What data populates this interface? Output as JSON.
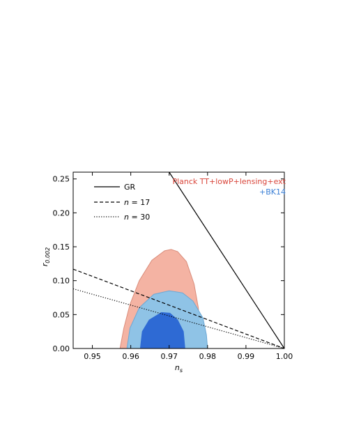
{
  "chart_data": {
    "type": "contour",
    "xlabel": "n",
    "xlabel_sub": "s",
    "ylabel": "r",
    "ylabel_sub": "0.002",
    "xlim": [
      0.945,
      1.0
    ],
    "ylim": [
      0.0,
      0.26
    ],
    "x_ticks": [
      0.95,
      0.96,
      0.97,
      0.98,
      0.99,
      1.0
    ],
    "x_tick_labels": [
      "0.95",
      "0.96",
      "0.97",
      "0.98",
      "0.99",
      "1.00"
    ],
    "y_ticks": [
      0.0,
      0.05,
      0.1,
      0.15,
      0.2,
      0.25
    ],
    "y_tick_labels": [
      "0.00",
      "0.05",
      "0.10",
      "0.15",
      "0.20",
      "0.25"
    ],
    "legend": {
      "placement": "top-left",
      "entries": [
        {
          "label": "GR",
          "style": "solid"
        },
        {
          "label_prefix": "n",
          "label_suffix": " = 17",
          "style": "dashed"
        },
        {
          "label_prefix": "n",
          "label_suffix": " = 30",
          "style": "dotted"
        }
      ]
    },
    "annotations": [
      {
        "text": "Planck TT+lowP+lensing+ext",
        "color": "#d9453a",
        "placement": "top-right"
      },
      {
        "text": "+BK14",
        "color": "#3a7fd5",
        "placement": "top-right"
      }
    ],
    "lines": [
      {
        "name": "GR",
        "style": "solid",
        "color": "#000000",
        "points": [
          [
            0.97,
            0.26
          ],
          [
            1.0,
            0.0
          ]
        ]
      },
      {
        "name": "n = 17",
        "style": "dashed",
        "color": "#000000",
        "points": [
          [
            0.945,
            0.117
          ],
          [
            1.0,
            0.0
          ]
        ]
      },
      {
        "name": "n = 30",
        "style": "dotted",
        "color": "#000000",
        "points": [
          [
            0.945,
            0.088
          ],
          [
            1.0,
            0.0
          ]
        ]
      }
    ],
    "contours": [
      {
        "dataset": "Planck TT+lowP+lensing+ext",
        "level": "95%",
        "fill": "#f4b3a3",
        "stroke": "#d98c7a",
        "points": [
          [
            0.9572,
            0.0
          ],
          [
            0.9582,
            0.03
          ],
          [
            0.9598,
            0.065
          ],
          [
            0.9622,
            0.1
          ],
          [
            0.9655,
            0.13
          ],
          [
            0.9688,
            0.144
          ],
          [
            0.9705,
            0.146
          ],
          [
            0.9722,
            0.143
          ],
          [
            0.9745,
            0.128
          ],
          [
            0.9765,
            0.095
          ],
          [
            0.9776,
            0.06
          ],
          [
            0.9782,
            0.02
          ],
          [
            0.9784,
            0.0
          ]
        ]
      },
      {
        "dataset": "Planck TT+lowP+lensing+ext",
        "level": "68%",
        "fill": "#e9978a",
        "stroke": "#e9978a",
        "points": [
          [
            0.9608,
            0.0
          ],
          [
            0.9618,
            0.035
          ],
          [
            0.9648,
            0.065
          ],
          [
            0.969,
            0.08
          ],
          [
            0.9725,
            0.07
          ],
          [
            0.9748,
            0.04
          ],
          [
            0.9754,
            0.0
          ]
        ]
      },
      {
        "dataset": "+BK14",
        "level": "95%",
        "fill": "#8fc3e6",
        "stroke": "#6aa8d6",
        "points": [
          [
            0.959,
            0.0
          ],
          [
            0.9598,
            0.03
          ],
          [
            0.9622,
            0.06
          ],
          [
            0.966,
            0.08
          ],
          [
            0.97,
            0.085
          ],
          [
            0.9735,
            0.082
          ],
          [
            0.9762,
            0.07
          ],
          [
            0.9788,
            0.045
          ],
          [
            0.9797,
            0.02
          ],
          [
            0.98,
            0.0
          ]
        ]
      },
      {
        "dataset": "+BK14",
        "level": "68%",
        "fill": "#2e6ad4",
        "stroke": "#2e6ad4",
        "points": [
          [
            0.9625,
            0.0
          ],
          [
            0.963,
            0.025
          ],
          [
            0.9648,
            0.042
          ],
          [
            0.968,
            0.053
          ],
          [
            0.9702,
            0.052
          ],
          [
            0.9722,
            0.042
          ],
          [
            0.9737,
            0.025
          ],
          [
            0.9741,
            0.0
          ]
        ]
      }
    ]
  }
}
